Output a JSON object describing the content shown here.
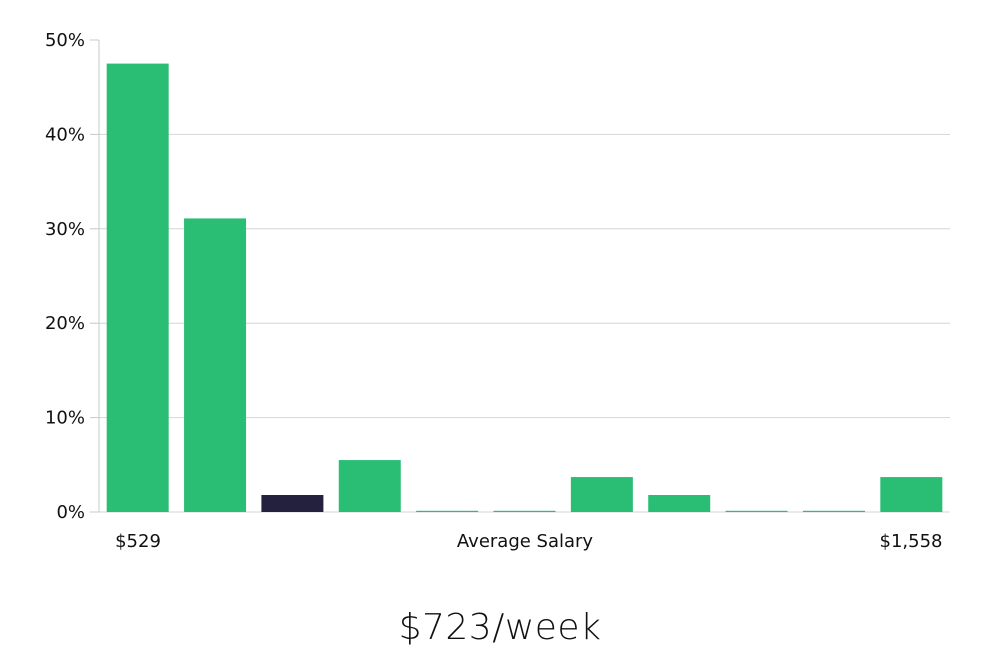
{
  "chart_data": {
    "type": "bar",
    "xlabel": "Average Salary",
    "x_min_label": "$529",
    "x_max_label": "$1,558",
    "ylim": [
      0,
      50
    ],
    "yticks": [
      0,
      10,
      20,
      30,
      40,
      50
    ],
    "ytick_labels": [
      "0%",
      "10%",
      "20%",
      "30%",
      "40%",
      "50%"
    ],
    "grid": true,
    "values": [
      47.5,
      31.1,
      1.8,
      5.5,
      0.1,
      0.1,
      3.7,
      1.8,
      0.1,
      0.1,
      3.7
    ],
    "highlight_index": 2,
    "colors": {
      "bar": "#2abe75",
      "highlight": "#24213f",
      "grid": "#d6d6d6",
      "axis": "#c8c8c8"
    }
  },
  "headline": "$723/week"
}
